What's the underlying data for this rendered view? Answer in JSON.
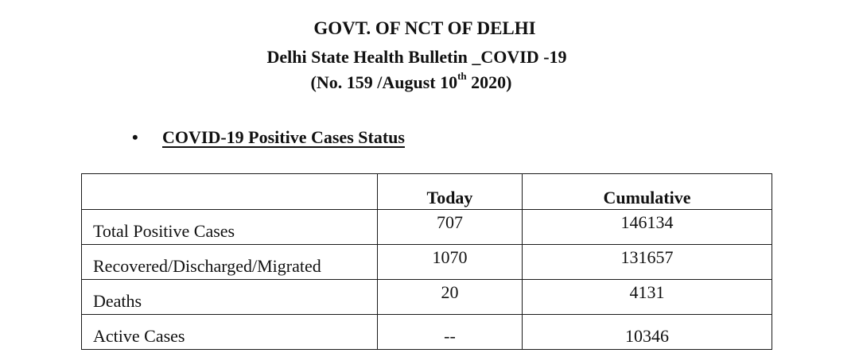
{
  "header": {
    "line1": "GOVT. OF NCT OF DELHI",
    "line2": "Delhi State Health Bulletin _COVID -19",
    "line3_prefix": "(No. 159 /August 10",
    "line3_sup": "th",
    "line3_suffix": " 2020)"
  },
  "section": {
    "bullet": "•",
    "title": "COVID-19 Positive Cases Status"
  },
  "table": {
    "columns": [
      "",
      "Today",
      "Cumulative"
    ],
    "rows": [
      {
        "label": "Total Positive Cases",
        "today": "707",
        "cumulative": "146134"
      },
      {
        "label": "Recovered/Discharged/Migrated",
        "today": "1070",
        "cumulative": "131657"
      },
      {
        "label": "Deaths",
        "today": "20",
        "cumulative": "4131"
      },
      {
        "label": "Active Cases",
        "today": "--",
        "cumulative": "10346"
      }
    ]
  }
}
